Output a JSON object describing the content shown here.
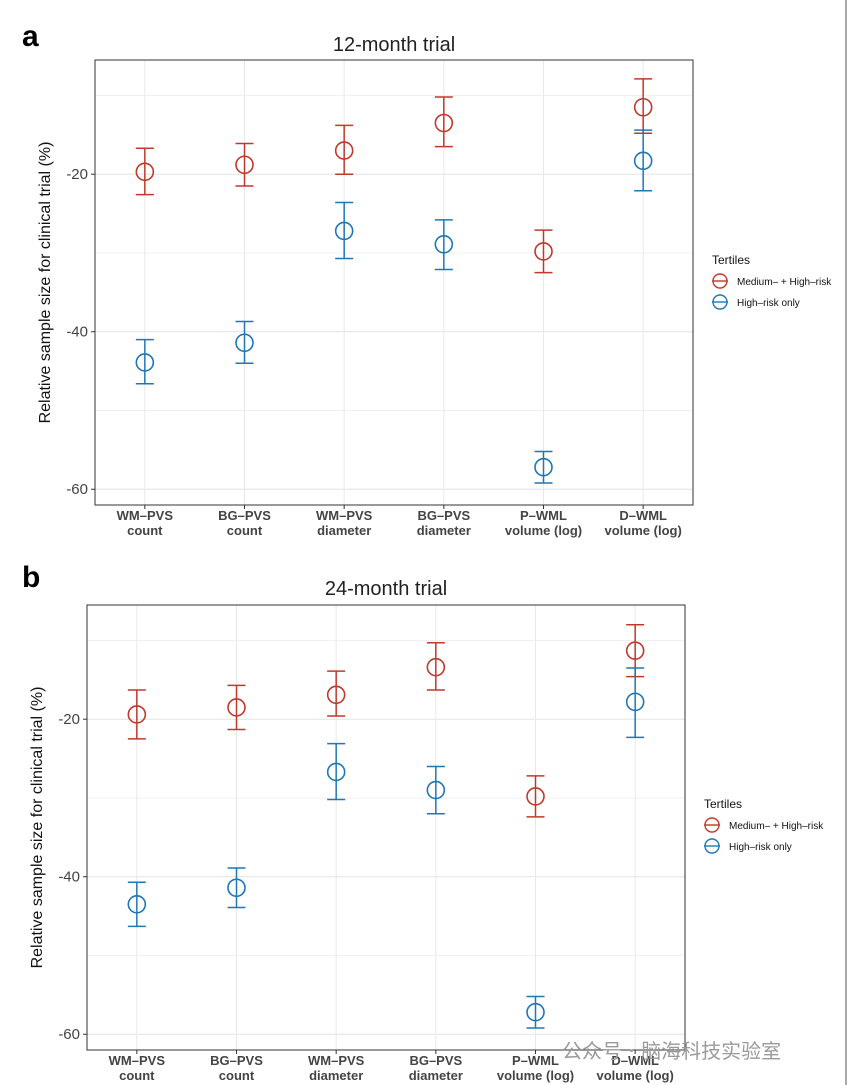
{
  "watermark": "公众号 · 脑海科技实验室",
  "chart_data": [
    {
      "panel": "a",
      "type": "scatter",
      "title": "12-month trial",
      "xlabel": "",
      "ylabel": "Relative sample size for clinical trial (%)",
      "categories": [
        "WM–PVS\ncount",
        "BG–PVS\ncount",
        "WM–PVS\ndiameter",
        "BG–PVS\ndiameter",
        "P–WML\nvolume (log)",
        "D–WML\nvolume (log)"
      ],
      "ylim": [
        -62,
        -5.5
      ],
      "yticks": [
        -20,
        -40,
        -60
      ],
      "grid": true,
      "legend": {
        "title": "Tertiles",
        "position": "right"
      },
      "series": [
        {
          "name": "Medium– + High–risk",
          "color": "#c0392b",
          "values": [
            -19.7,
            -18.8,
            -17.0,
            -13.5,
            -29.8,
            -11.5
          ],
          "lower": [
            -22.6,
            -21.5,
            -20.0,
            -16.5,
            -32.5,
            -14.8
          ],
          "upper": [
            -16.7,
            -16.1,
            -13.8,
            -10.2,
            -27.1,
            -7.9
          ]
        },
        {
          "name": "High–risk only",
          "color": "#1f77b4",
          "values": [
            -43.9,
            -41.4,
            -27.2,
            -28.9,
            -57.2,
            -18.3
          ],
          "lower": [
            -46.6,
            -44.0,
            -30.7,
            -32.1,
            -59.2,
            -22.1
          ],
          "upper": [
            -41.0,
            -38.7,
            -23.6,
            -25.8,
            -55.2,
            -14.4
          ]
        }
      ]
    },
    {
      "panel": "b",
      "type": "scatter",
      "title": "24-month trial",
      "xlabel": "",
      "ylabel": "Relative sample size for clinical trial (%)",
      "categories": [
        "WM–PVS\ncount",
        "BG–PVS\ncount",
        "WM–PVS\ndiameter",
        "BG–PVS\ndiameter",
        "P–WML\nvolume (log)",
        "D–WML\nvolume (log)"
      ],
      "ylim": [
        -62,
        -5.5
      ],
      "yticks": [
        -20,
        -40,
        -60
      ],
      "grid": true,
      "legend": {
        "title": "Tertiles",
        "position": "right"
      },
      "series": [
        {
          "name": "Medium– + High–risk",
          "color": "#c0392b",
          "values": [
            -19.4,
            -18.5,
            -16.9,
            -13.4,
            -29.8,
            -11.3
          ],
          "lower": [
            -22.5,
            -21.3,
            -19.6,
            -16.3,
            -32.4,
            -14.6
          ],
          "upper": [
            -16.3,
            -15.7,
            -13.9,
            -10.3,
            -27.2,
            -8.0
          ]
        },
        {
          "name": "High–risk only",
          "color": "#1f77b4",
          "values": [
            -43.5,
            -41.4,
            -26.7,
            -29.0,
            -57.2,
            -17.8
          ],
          "lower": [
            -46.3,
            -43.9,
            -30.2,
            -32.0,
            -59.2,
            -22.3
          ],
          "upper": [
            -40.7,
            -38.9,
            -23.1,
            -26.0,
            -55.2,
            -13.5
          ]
        }
      ]
    }
  ]
}
